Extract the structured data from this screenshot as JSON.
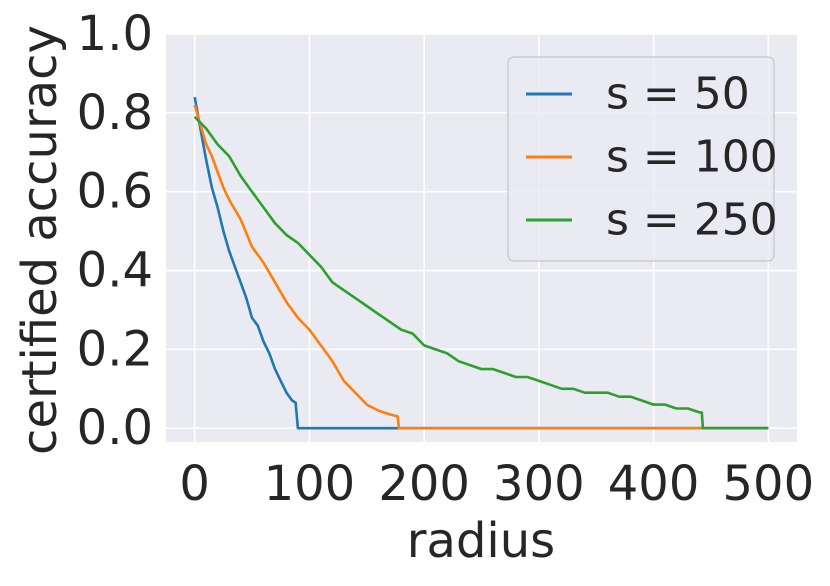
{
  "chart_data": {
    "type": "line",
    "title": "",
    "xlabel": "radius",
    "ylabel": "certified accuracy",
    "xlim": [
      -25,
      525
    ],
    "ylim": [
      -0.035,
      1.0
    ],
    "xticks": [
      0,
      100,
      200,
      300,
      400,
      500
    ],
    "xtick_labels": [
      "0",
      "100",
      "200",
      "300",
      "400",
      "500"
    ],
    "yticks": [
      0.0,
      0.2,
      0.4,
      0.6,
      0.8,
      1.0
    ],
    "ytick_labels": [
      "0.0",
      "0.2",
      "0.4",
      "0.6",
      "0.8",
      "1.0"
    ],
    "grid": true,
    "legend_position": "top-right",
    "series": [
      {
        "name": "s = 50",
        "color": "#1f77b4",
        "x": [
          0,
          5,
          10,
          15,
          20,
          25,
          30,
          35,
          40,
          45,
          50,
          55,
          60,
          65,
          70,
          75,
          80,
          85,
          88,
          90,
          500
        ],
        "y": [
          0.84,
          0.76,
          0.68,
          0.61,
          0.56,
          0.5,
          0.45,
          0.41,
          0.37,
          0.33,
          0.28,
          0.26,
          0.22,
          0.19,
          0.15,
          0.12,
          0.09,
          0.07,
          0.065,
          0.0,
          0.0
        ]
      },
      {
        "name": "s = 100",
        "color": "#ff7f0e",
        "x": [
          0,
          5,
          10,
          15,
          20,
          25,
          30,
          40,
          50,
          60,
          70,
          80,
          90,
          100,
          110,
          120,
          130,
          140,
          150,
          160,
          170,
          177,
          178,
          500
        ],
        "y": [
          0.82,
          0.77,
          0.72,
          0.69,
          0.65,
          0.61,
          0.58,
          0.53,
          0.46,
          0.42,
          0.37,
          0.32,
          0.28,
          0.25,
          0.21,
          0.17,
          0.12,
          0.09,
          0.06,
          0.045,
          0.035,
          0.03,
          0.0,
          0.0
        ]
      },
      {
        "name": "s = 250",
        "color": "#2ca02c",
        "x": [
          0,
          10,
          20,
          30,
          40,
          50,
          60,
          70,
          80,
          90,
          100,
          110,
          120,
          130,
          140,
          150,
          160,
          170,
          180,
          190,
          200,
          210,
          220,
          230,
          240,
          250,
          260,
          270,
          280,
          290,
          300,
          310,
          320,
          330,
          340,
          350,
          360,
          370,
          380,
          390,
          400,
          410,
          420,
          430,
          440,
          442,
          443,
          500
        ],
        "y": [
          0.79,
          0.76,
          0.72,
          0.69,
          0.64,
          0.6,
          0.56,
          0.52,
          0.49,
          0.47,
          0.44,
          0.41,
          0.37,
          0.35,
          0.33,
          0.31,
          0.29,
          0.27,
          0.25,
          0.24,
          0.21,
          0.2,
          0.19,
          0.17,
          0.16,
          0.15,
          0.15,
          0.14,
          0.13,
          0.13,
          0.12,
          0.11,
          0.1,
          0.1,
          0.09,
          0.09,
          0.09,
          0.08,
          0.08,
          0.07,
          0.06,
          0.06,
          0.05,
          0.05,
          0.04,
          0.04,
          0.0,
          0.0
        ]
      }
    ]
  }
}
